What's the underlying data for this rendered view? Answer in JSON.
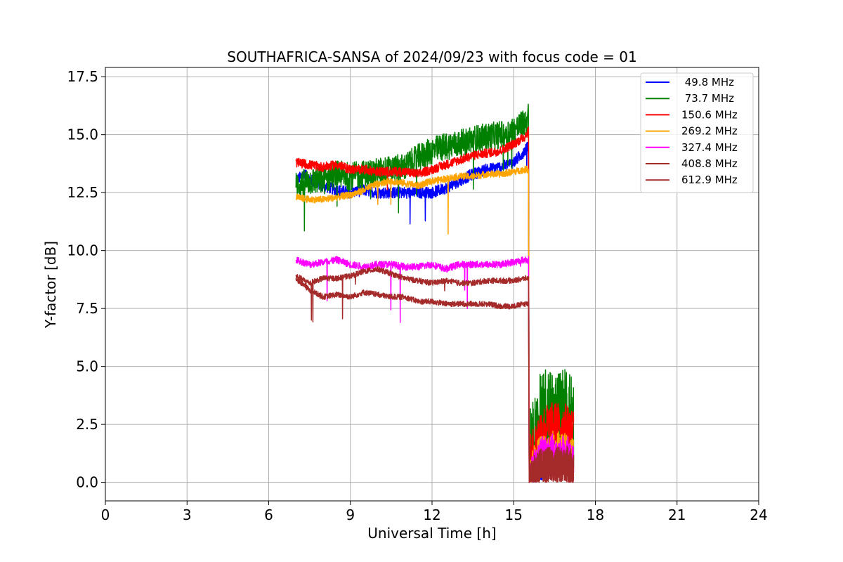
{
  "chart_data": {
    "type": "line",
    "title": "SOUTHAFRICA-SANSA of 2024/09/23 with focus code = 01",
    "xlabel": "Universal Time [h]",
    "ylabel": "Y-factor [dB]",
    "xlim": [
      0,
      24
    ],
    "ylim": [
      -0.8,
      17.9
    ],
    "xticks": [
      0,
      3,
      6,
      9,
      12,
      15,
      18,
      21,
      24
    ],
    "yticks": [
      0.0,
      2.5,
      5.0,
      7.5,
      10.0,
      12.5,
      15.0,
      17.5
    ],
    "xtick_labels": [
      "0",
      "3",
      "6",
      "9",
      "12",
      "15",
      "18",
      "21",
      "24"
    ],
    "ytick_labels": [
      "0.0",
      "2.5",
      "5.0",
      "7.5",
      "10.0",
      "12.5",
      "15.0",
      "17.5"
    ],
    "grid": true,
    "legend_position": "top-right",
    "series": [
      {
        "name": " 49.8 MHz",
        "color": "#0000ff",
        "points": [
          [
            7.0,
            13.0
          ],
          [
            7.3,
            13.3
          ],
          [
            7.6,
            13.0
          ],
          [
            8.0,
            12.8
          ],
          [
            8.5,
            12.6
          ],
          [
            9.0,
            12.5
          ],
          [
            9.5,
            12.6
          ],
          [
            10.0,
            12.5
          ],
          [
            10.5,
            12.5
          ],
          [
            11.0,
            12.5
          ],
          [
            11.5,
            12.5
          ],
          [
            12.0,
            12.5
          ],
          [
            12.5,
            12.7
          ],
          [
            13.0,
            13.0
          ],
          [
            13.5,
            13.3
          ],
          [
            14.0,
            13.5
          ],
          [
            14.5,
            13.6
          ],
          [
            15.0,
            13.8
          ],
          [
            15.4,
            14.3
          ],
          [
            15.55,
            14.5
          ],
          [
            15.6,
            0.5
          ],
          [
            16.0,
            1.2
          ],
          [
            16.5,
            1.4
          ],
          [
            17.0,
            1.3
          ],
          [
            17.2,
            1.1
          ]
        ],
        "noise": 0.25
      },
      {
        "name": " 73.7 MHz",
        "color": "#008000",
        "points": [
          [
            7.0,
            12.8
          ],
          [
            7.5,
            13.0
          ],
          [
            8.0,
            13.0
          ],
          [
            8.5,
            13.3
          ],
          [
            9.0,
            13.2
          ],
          [
            9.5,
            13.3
          ],
          [
            10.0,
            13.4
          ],
          [
            10.5,
            13.5
          ],
          [
            11.0,
            13.6
          ],
          [
            11.5,
            14.0
          ],
          [
            12.0,
            14.3
          ],
          [
            12.5,
            14.5
          ],
          [
            13.0,
            14.6
          ],
          [
            13.5,
            14.8
          ],
          [
            14.0,
            14.9
          ],
          [
            14.5,
            15.0
          ],
          [
            15.0,
            15.2
          ],
          [
            15.4,
            15.5
          ],
          [
            15.55,
            15.8
          ],
          [
            15.6,
            1.0
          ],
          [
            16.0,
            2.6
          ],
          [
            16.5,
            2.9
          ],
          [
            17.0,
            2.8
          ],
          [
            17.2,
            2.6
          ]
        ],
        "noise": 0.6
      },
      {
        "name": "150.6 MHz",
        "color": "#ff0000",
        "points": [
          [
            7.0,
            13.8
          ],
          [
            7.5,
            13.7
          ],
          [
            8.0,
            13.6
          ],
          [
            8.5,
            13.7
          ],
          [
            9.0,
            13.5
          ],
          [
            9.5,
            13.5
          ],
          [
            10.0,
            13.4
          ],
          [
            10.5,
            13.4
          ],
          [
            11.0,
            13.4
          ],
          [
            11.5,
            13.3
          ],
          [
            12.0,
            13.5
          ],
          [
            12.5,
            13.7
          ],
          [
            13.0,
            13.9
          ],
          [
            13.5,
            14.1
          ],
          [
            14.0,
            14.2
          ],
          [
            14.5,
            14.3
          ],
          [
            15.0,
            14.6
          ],
          [
            15.4,
            14.9
          ],
          [
            15.55,
            15.2
          ],
          [
            15.6,
            1.0
          ],
          [
            16.0,
            2.3
          ],
          [
            16.5,
            2.5
          ],
          [
            17.0,
            2.4
          ],
          [
            17.2,
            2.2
          ]
        ],
        "noise": 0.2
      },
      {
        "name": "269.2 MHz",
        "color": "#ffa500",
        "points": [
          [
            7.0,
            12.3
          ],
          [
            7.5,
            12.2
          ],
          [
            8.0,
            12.2
          ],
          [
            8.5,
            12.3
          ],
          [
            9.0,
            12.4
          ],
          [
            9.5,
            12.6
          ],
          [
            10.0,
            12.9
          ],
          [
            10.5,
            13.0
          ],
          [
            11.0,
            12.9
          ],
          [
            11.5,
            12.8
          ],
          [
            12.0,
            13.0
          ],
          [
            12.5,
            13.1
          ],
          [
            13.0,
            13.2
          ],
          [
            13.5,
            13.2
          ],
          [
            14.0,
            13.3
          ],
          [
            14.5,
            13.3
          ],
          [
            15.0,
            13.4
          ],
          [
            15.4,
            13.5
          ],
          [
            15.55,
            13.5
          ],
          [
            15.6,
            0.5
          ],
          [
            16.0,
            1.2
          ],
          [
            16.5,
            1.4
          ],
          [
            17.0,
            1.3
          ],
          [
            17.2,
            1.2
          ]
        ],
        "noise": 0.15
      },
      {
        "name": "327.4 MHz",
        "color": "#ff00ff",
        "points": [
          [
            7.0,
            9.6
          ],
          [
            7.5,
            9.4
          ],
          [
            8.0,
            9.5
          ],
          [
            8.5,
            9.6
          ],
          [
            9.0,
            9.4
          ],
          [
            9.5,
            9.3
          ],
          [
            10.0,
            9.4
          ],
          [
            10.5,
            9.4
          ],
          [
            11.0,
            9.3
          ],
          [
            11.5,
            9.3
          ],
          [
            12.0,
            9.4
          ],
          [
            12.5,
            9.2
          ],
          [
            13.0,
            9.4
          ],
          [
            13.5,
            9.4
          ],
          [
            14.0,
            9.4
          ],
          [
            14.5,
            9.4
          ],
          [
            15.0,
            9.5
          ],
          [
            15.4,
            9.6
          ],
          [
            15.55,
            9.6
          ],
          [
            15.6,
            0.3
          ],
          [
            16.0,
            1.1
          ],
          [
            16.5,
            1.3
          ],
          [
            17.0,
            1.2
          ],
          [
            17.2,
            1.0
          ]
        ],
        "noise": 0.15
      },
      {
        "name": "408.8 MHz",
        "color": "#a52a2a",
        "points": [
          [
            7.0,
            8.9
          ],
          [
            7.5,
            8.6
          ],
          [
            8.0,
            8.8
          ],
          [
            8.5,
            8.8
          ],
          [
            9.0,
            8.9
          ],
          [
            9.5,
            9.1
          ],
          [
            10.0,
            9.2
          ],
          [
            10.5,
            9.0
          ],
          [
            11.0,
            8.8
          ],
          [
            11.5,
            8.7
          ],
          [
            12.0,
            8.6
          ],
          [
            12.5,
            8.7
          ],
          [
            13.0,
            8.6
          ],
          [
            13.5,
            8.6
          ],
          [
            14.0,
            8.7
          ],
          [
            14.5,
            8.7
          ],
          [
            15.0,
            8.7
          ],
          [
            15.4,
            8.8
          ],
          [
            15.55,
            8.8
          ],
          [
            15.6,
            0.2
          ],
          [
            16.0,
            0.7
          ],
          [
            16.5,
            0.8
          ],
          [
            17.0,
            0.8
          ],
          [
            17.2,
            0.6
          ]
        ],
        "noise": 0.12
      },
      {
        "name": "612.9 MHz",
        "color": "#a52a2a",
        "points": [
          [
            7.0,
            8.8
          ],
          [
            7.5,
            8.3
          ],
          [
            8.0,
            8.0
          ],
          [
            8.5,
            8.1
          ],
          [
            9.0,
            8.0
          ],
          [
            9.5,
            8.2
          ],
          [
            10.0,
            8.1
          ],
          [
            10.5,
            8.0
          ],
          [
            11.0,
            8.0
          ],
          [
            11.5,
            7.8
          ],
          [
            12.0,
            7.8
          ],
          [
            12.5,
            7.7
          ],
          [
            13.0,
            7.7
          ],
          [
            13.5,
            7.7
          ],
          [
            14.0,
            7.7
          ],
          [
            14.5,
            7.6
          ],
          [
            15.0,
            7.6
          ],
          [
            15.4,
            7.7
          ],
          [
            15.55,
            7.7
          ],
          [
            15.6,
            0.1
          ],
          [
            16.0,
            0.6
          ],
          [
            16.5,
            0.7
          ],
          [
            17.0,
            0.6
          ],
          [
            17.2,
            0.5
          ]
        ],
        "noise": 0.12
      }
    ]
  }
}
